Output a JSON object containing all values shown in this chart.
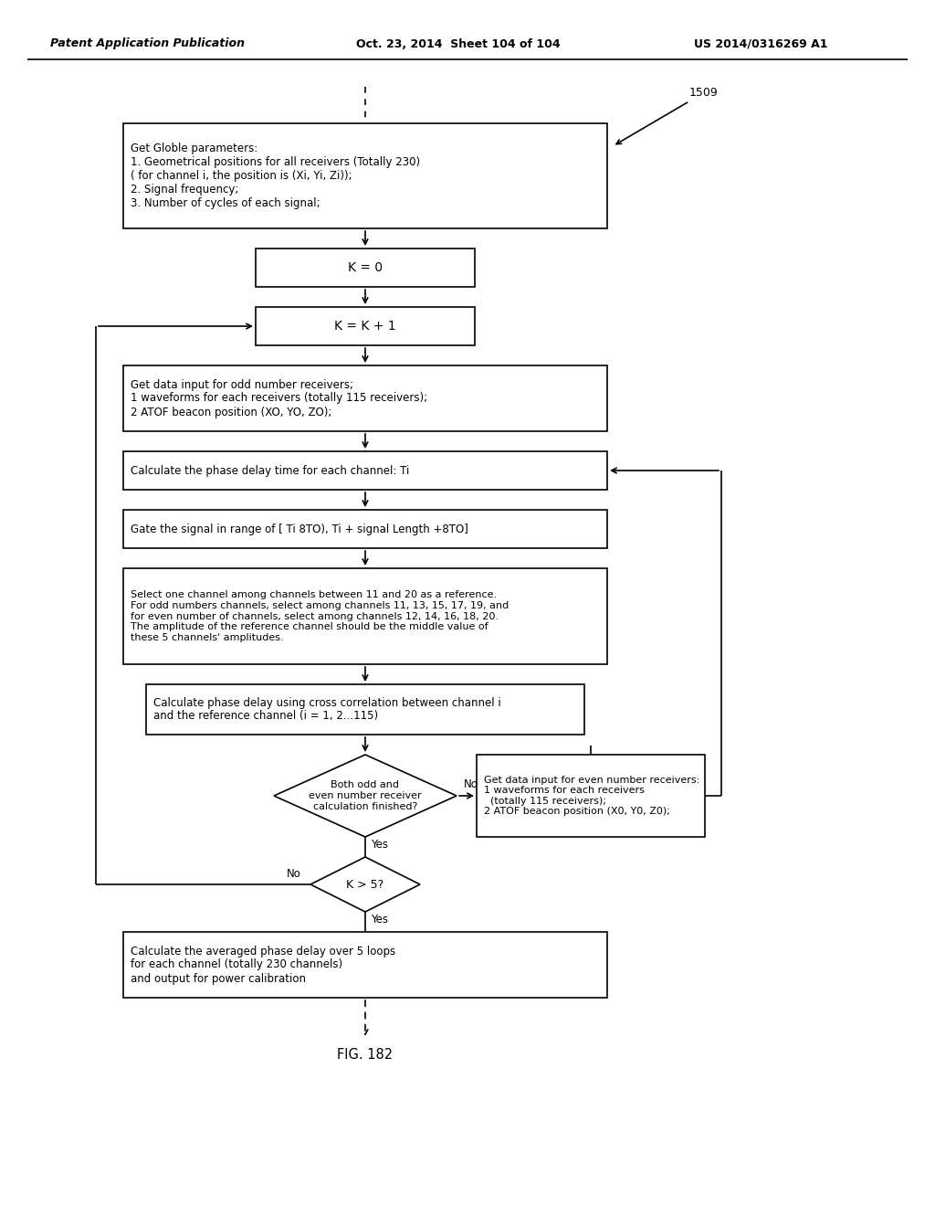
{
  "title_left": "Patent Application Publication",
  "title_mid": "Oct. 23, 2014  Sheet 104 of 104",
  "title_right": "US 2014/0316269 A1",
  "fig_label": "FIG. 182",
  "label_1509": "1509",
  "box1_text": "Get Globle parameters:\n1. Geometrical positions for all receivers (Totally 230)\n( for channel i, the position is (Xi, Yi, Zi));\n2. Signal frequency;\n3. Number of cycles of each signal;",
  "box2_text": "K = 0",
  "box3_text": "K = K + 1",
  "box4_text": "Get data input for odd number receivers;\n1 waveforms for each receivers (totally 115 receivers);\n2 ATOF beacon position (XO, YO, ZO);",
  "box5_text": "Calculate the phase delay time for each channel: Ti",
  "box6_text": "Gate the signal in range of [ Ti 8TO), Ti + signal Length +8TO]",
  "box7_text": "Select one channel among channels between 11 and 20 as a reference.\nFor odd numbers channels, select among channels 11, 13, 15, 17, 19, and\nfor even number of channels, select among channels 12, 14, 16, 18, 20.\nThe amplitude of the reference channel should be the middle value of\nthese 5 channels' amplitudes.",
  "box8_text": "Calculate phase delay using cross correlation between channel i\nand the reference channel (i = 1, 2...115)",
  "diamond_text": "Both odd and\neven number receiver\ncalculation finished?",
  "box_no_text": "Get data input for even number receivers:\n1 waveforms for each receivers\n  (totally 115 receivers);\n2 ATOF beacon position (X0, Y0, Z0);",
  "box_kgt5_text": "K > 5?",
  "box_final_text": "Calculate the averaged phase delay over 5 loops\nfor each channel (totally 230 channels)\nand output for power calibration",
  "label_no_right": "No",
  "label_yes_diam": "Yes",
  "label_yes_kgt5": "Yes",
  "label_no_kgt5": "No",
  "bg_color": "#ffffff",
  "box_color": "#ffffff",
  "line_color": "#000000",
  "text_color": "#000000"
}
